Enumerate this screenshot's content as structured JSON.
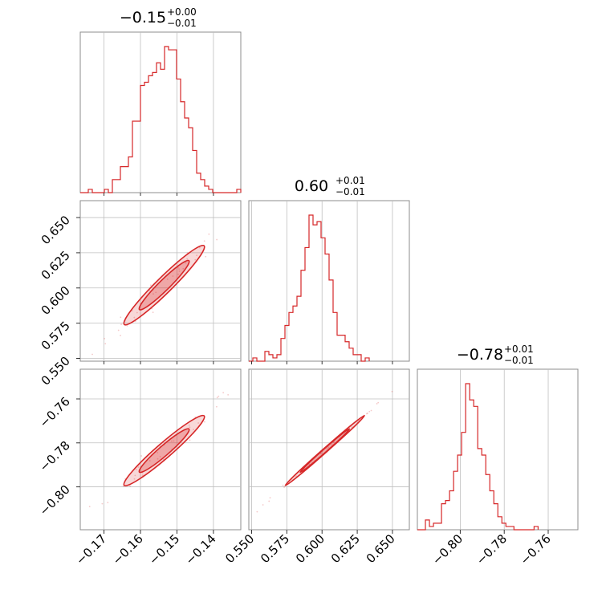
{
  "figure": {
    "color": "#d62728",
    "grid_color": "#bfbfbf",
    "frame_color": "#8c8c8c"
  },
  "chart_data": {
    "type": "corner",
    "parameters": [
      {
        "title": {
          "value": "−0.15",
          "plus": "+0.00",
          "minus": "−0.01"
        },
        "range": [
          -0.1765,
          -0.1325
        ],
        "ticks": [
          -0.17,
          -0.16,
          -0.15,
          -0.14
        ],
        "tick_labels": [
          "−0.17",
          "−0.16",
          "−0.15",
          "−0.14"
        ]
      },
      {
        "title": {
          "value": "0.60",
          "plus": "+0.01",
          "minus": "−0.01"
        },
        "range": [
          0.548,
          0.662
        ],
        "ticks": [
          0.55,
          0.575,
          0.6,
          0.625,
          0.65
        ],
        "tick_labels": [
          "0.550",
          "0.575",
          "0.600",
          "0.625",
          "0.650"
        ]
      },
      {
        "title": {
          "value": "−0.78",
          "plus": "+0.01",
          "minus": "−0.01"
        },
        "range": [
          -0.8195,
          -0.7465
        ],
        "ticks": [
          -0.8,
          -0.78,
          -0.76
        ],
        "tick_labels": [
          "−0.80",
          "−0.78",
          "−0.76"
        ]
      }
    ],
    "histograms": [
      {
        "bin_start": -0.1765,
        "bin_width": 0.0011,
        "counts": [
          0,
          0,
          1,
          0,
          0,
          0,
          1,
          0,
          4,
          4,
          8,
          8,
          11,
          22,
          22,
          33,
          34,
          36,
          37,
          40,
          38,
          45,
          44,
          44,
          35,
          28,
          23,
          20,
          13,
          6,
          4,
          2,
          1,
          0,
          0,
          0,
          0,
          0,
          0,
          1
        ]
      },
      {
        "bin_start": 0.548,
        "bin_width": 0.00285,
        "counts": [
          0,
          1,
          0,
          0,
          3,
          2,
          1,
          2,
          7,
          11,
          15,
          17,
          20,
          28,
          35,
          45,
          42,
          43,
          38,
          33,
          25,
          15,
          8,
          8,
          6,
          4,
          2,
          2,
          0,
          1
        ]
      },
      {
        "bin_start": -0.8195,
        "bin_width": 0.00183,
        "counts": [
          0,
          0,
          3,
          1,
          2,
          2,
          8,
          9,
          12,
          18,
          23,
          30,
          45,
          40,
          38,
          25,
          23,
          17,
          12,
          8,
          4,
          2,
          1,
          1,
          0,
          0,
          0,
          0,
          0,
          1
        ]
      }
    ],
    "correlations": {
      "p0_p1": 0.97,
      "p0_p2": 0.97,
      "p1_p2": 0.999
    },
    "grid": true,
    "contours": "filled 1-sigma and 2-sigma regions"
  }
}
